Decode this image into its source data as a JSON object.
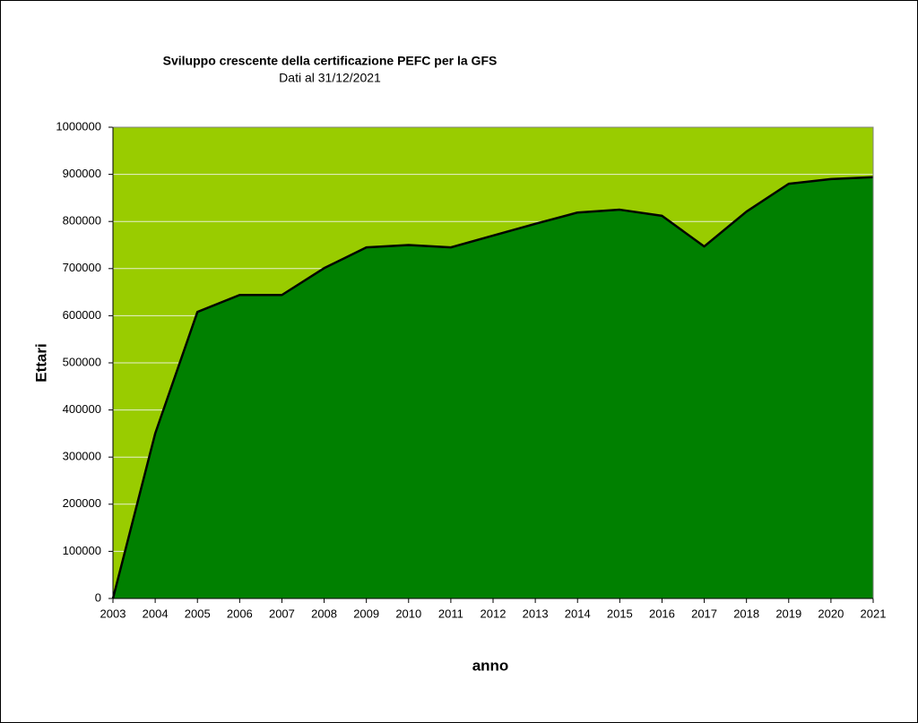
{
  "chart_data": {
    "type": "area",
    "title": "Sviluppo crescente della certificazione PEFC per la GFS",
    "subtitle": "Dati al 31/12/2021",
    "x_label": "anno",
    "y_label": "Ettari",
    "x": [
      2003,
      2004,
      2005,
      2006,
      2007,
      2008,
      2009,
      2010,
      2011,
      2012,
      2013,
      2014,
      2015,
      2016,
      2017,
      2018,
      2019,
      2020,
      2021
    ],
    "values": [
      0,
      350000,
      608000,
      644000,
      644000,
      701000,
      745000,
      750000,
      745000,
      770000,
      795000,
      819000,
      825000,
      812000,
      747000,
      821000,
      880000,
      890000,
      894000
    ],
    "color": "#008000",
    "background": "#99cc00",
    "xlim": [
      2003,
      2021
    ],
    "xticks": [
      2003,
      2004,
      2005,
      2006,
      2007,
      2008,
      2009,
      2010,
      2011,
      2012,
      2013,
      2014,
      2015,
      2016,
      2017,
      2018,
      2019,
      2020,
      2021
    ],
    "ylim": [
      0,
      1000000
    ],
    "yticks": [
      0,
      100000,
      200000,
      300000,
      400000,
      500000,
      600000,
      700000,
      800000,
      900000,
      1000000
    ],
    "grid": true
  }
}
